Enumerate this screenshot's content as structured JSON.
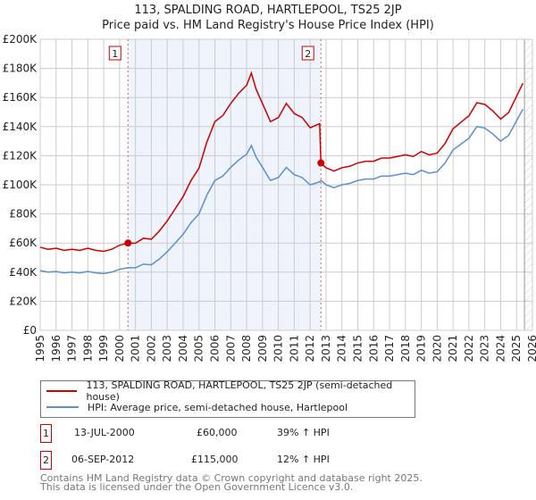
{
  "title": "113, SPALDING ROAD, HARTLEPOOL, TS25 2JP",
  "subtitle": "Price paid vs. HM Land Registry's House Price Index (HPI)",
  "chart_data": {
    "type": "line",
    "ylim": [
      0,
      200000
    ],
    "xlim": [
      1995,
      2026
    ],
    "yticks": [
      {
        "v": 0,
        "label": "£0"
      },
      {
        "v": 20000,
        "label": "£20K"
      },
      {
        "v": 40000,
        "label": "£40K"
      },
      {
        "v": 60000,
        "label": "£60K"
      },
      {
        "v": 80000,
        "label": "£80K"
      },
      {
        "v": 100000,
        "label": "£100K"
      },
      {
        "v": 120000,
        "label": "£120K"
      },
      {
        "v": 140000,
        "label": "£140K"
      },
      {
        "v": 160000,
        "label": "£160K"
      },
      {
        "v": 180000,
        "label": "£180K"
      },
      {
        "v": 200000,
        "label": "£200K"
      }
    ],
    "xticks": [
      "1995",
      "1996",
      "1997",
      "1998",
      "1999",
      "2000",
      "2001",
      "2002",
      "2003",
      "2004",
      "2005",
      "2006",
      "2007",
      "2008",
      "2009",
      "2010",
      "2011",
      "2012",
      "2013",
      "2014",
      "2015",
      "2016",
      "2017",
      "2018",
      "2019",
      "2020",
      "2021",
      "2022",
      "2023",
      "2024",
      "2025",
      "2026"
    ],
    "x": [
      1995,
      1995.5,
      1996,
      1996.5,
      1997,
      1997.5,
      1998,
      1998.5,
      1999,
      1999.5,
      2000,
      2000.53,
      2001,
      2001.5,
      2002,
      2002.5,
      2003,
      2003.5,
      2004,
      2004.5,
      2005,
      2005.5,
      2006,
      2006.5,
      2007,
      2007.5,
      2008,
      2008.3,
      2008.6,
      2009,
      2009.5,
      2010,
      2010.5,
      2011,
      2011.5,
      2012,
      2012.6,
      2012.68,
      2013,
      2013.5,
      2014,
      2014.5,
      2015,
      2015.5,
      2016,
      2016.5,
      2017,
      2017.5,
      2018,
      2018.5,
      2019,
      2019.5,
      2020,
      2020.5,
      2021,
      2021.5,
      2022,
      2022.5,
      2023,
      2023.5,
      2024,
      2024.5,
      2025,
      2025.4
    ],
    "series": [
      {
        "name": "113, SPALDING ROAD, HARTLEPOOL, TS25 2JP (semi-detached house)",
        "color": "#cc0000",
        "values": [
          57100,
          55700,
          56400,
          55000,
          55700,
          55000,
          56400,
          55000,
          54300,
          55700,
          58500,
          60000,
          59900,
          63300,
          62600,
          68200,
          75200,
          83500,
          91900,
          103000,
          111400,
          129500,
          143400,
          147600,
          155900,
          162900,
          168400,
          176800,
          165600,
          155900,
          143400,
          146200,
          155900,
          149000,
          146200,
          139200,
          142000,
          115000,
          111700,
          109500,
          111700,
          112800,
          115000,
          116200,
          116200,
          118400,
          118400,
          119500,
          120600,
          119500,
          122900,
          120600,
          121800,
          128500,
          138500,
          143000,
          147400,
          156400,
          155300,
          150800,
          145200,
          149700,
          160800,
          169800
        ]
      },
      {
        "name": "HPI: Average price, semi-detached house, Hartlepool",
        "color": "#5b8fd0",
        "values": [
          41000,
          40000,
          40500,
          39500,
          40000,
          39500,
          40500,
          39500,
          39000,
          40000,
          42000,
          43000,
          43000,
          45500,
          45000,
          49000,
          54000,
          60000,
          66000,
          74000,
          80000,
          93000,
          103000,
          106000,
          112000,
          117000,
          121000,
          127000,
          119000,
          112000,
          103000,
          105000,
          112000,
          107000,
          105000,
          100000,
          102000,
          103000,
          100000,
          98000,
          100000,
          101000,
          103000,
          104000,
          104000,
          106000,
          106000,
          107000,
          108000,
          107000,
          110000,
          108000,
          109000,
          115000,
          124000,
          128000,
          132000,
          140000,
          139000,
          135000,
          130000,
          134000,
          144000,
          152000
        ]
      }
    ],
    "sales": [
      {
        "id": "1",
        "x": 2000.53,
        "y": 60000
      },
      {
        "id": "2",
        "x": 2012.68,
        "y": 115000
      }
    ],
    "shaded_range": [
      2000.53,
      2012.68
    ],
    "forecast_from": 2025.5
  },
  "legend": [
    "113, SPALDING ROAD, HARTLEPOOL, TS25 2JP (semi-detached house)",
    "HPI: Average price, semi-detached house, Hartlepool"
  ],
  "transactions": [
    {
      "id": "1",
      "date": "13-JUL-2000",
      "price": "£60,000",
      "hpi": "39% ↑ HPI"
    },
    {
      "id": "2",
      "date": "06-SEP-2012",
      "price": "£115,000",
      "hpi": "12% ↑ HPI"
    }
  ],
  "footer": [
    "Contains HM Land Registry data © Crown copyright and database right 2025.",
    "This data is licensed under the Open Government Licence v3.0."
  ]
}
